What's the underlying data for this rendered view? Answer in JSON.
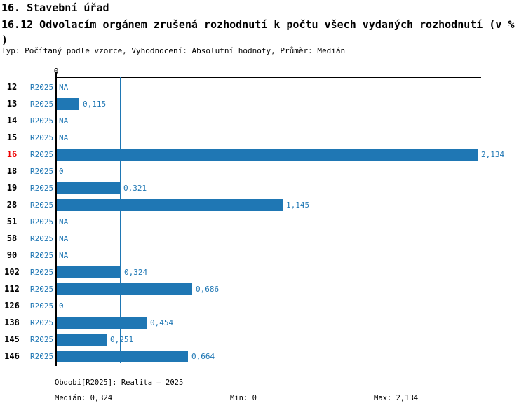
{
  "header": {
    "title": "16. Stavební úřad",
    "subtitle_line1": "16.12 Odvolacím orgánem zrušená rozhodnutí k počtu všech vydaných rozhodnutí (v %",
    "subtitle_line2": ")",
    "meta": "Typ: Počítaný podle vzorce, Vyhodnocení: Absolutní hodnoty, Průměr: Medián"
  },
  "chart_data": {
    "type": "bar",
    "orientation": "horizontal",
    "title": "16.12 Odvolacím orgánem zrušená rozhodnutí k počtu všech vydaných rozhodnutí (v %)",
    "xlabel": "",
    "ylabel": "",
    "xlim": [
      0,
      2.156
    ],
    "axis_zero_label": "0",
    "series_name": "R2025",
    "categories": [
      "12",
      "13",
      "14",
      "15",
      "16",
      "18",
      "19",
      "28",
      "51",
      "58",
      "90",
      "102",
      "112",
      "126",
      "138",
      "145",
      "146"
    ],
    "rows": [
      {
        "id": "12",
        "series": "R2025",
        "value": null,
        "label": "NA",
        "highlight": false
      },
      {
        "id": "13",
        "series": "R2025",
        "value": 0.115,
        "label": "0,115",
        "highlight": false
      },
      {
        "id": "14",
        "series": "R2025",
        "value": null,
        "label": "NA",
        "highlight": false
      },
      {
        "id": "15",
        "series": "R2025",
        "value": null,
        "label": "NA",
        "highlight": false
      },
      {
        "id": "16",
        "series": "R2025",
        "value": 2.134,
        "label": "2,134",
        "highlight": true
      },
      {
        "id": "18",
        "series": "R2025",
        "value": 0,
        "label": "0",
        "highlight": false
      },
      {
        "id": "19",
        "series": "R2025",
        "value": 0.321,
        "label": "0,321",
        "highlight": false
      },
      {
        "id": "28",
        "series": "R2025",
        "value": 1.145,
        "label": "1,145",
        "highlight": false
      },
      {
        "id": "51",
        "series": "R2025",
        "value": null,
        "label": "NA",
        "highlight": false
      },
      {
        "id": "58",
        "series": "R2025",
        "value": null,
        "label": "NA",
        "highlight": false
      },
      {
        "id": "90",
        "series": "R2025",
        "value": null,
        "label": "NA",
        "highlight": false
      },
      {
        "id": "102",
        "series": "R2025",
        "value": 0.324,
        "label": "0,324",
        "highlight": false
      },
      {
        "id": "112",
        "series": "R2025",
        "value": 0.686,
        "label": "0,686",
        "highlight": false
      },
      {
        "id": "126",
        "series": "R2025",
        "value": 0,
        "label": "0",
        "highlight": false
      },
      {
        "id": "138",
        "series": "R2025",
        "value": 0.454,
        "label": "0,454",
        "highlight": false
      },
      {
        "id": "145",
        "series": "R2025",
        "value": 0.251,
        "label": "0,251",
        "highlight": false
      },
      {
        "id": "146",
        "series": "R2025",
        "value": 0.664,
        "label": "0,664",
        "highlight": false
      }
    ],
    "median": 0.324,
    "min": 0,
    "max": 2.134,
    "legend_position": "none",
    "grid": false,
    "colors": {
      "bar": "#1f77b4",
      "median_line": "#1f77b4",
      "value_text": "#1f77b4",
      "series_text": "#1f77b4",
      "highlight_category": "#ee0000",
      "category_text": "#000000",
      "axis": "#000000"
    }
  },
  "footer": {
    "period": "Období[R2025]: Realita – 2025",
    "median": "Medián: 0,324",
    "min": "Min: 0",
    "max": "Max: 2,134"
  }
}
